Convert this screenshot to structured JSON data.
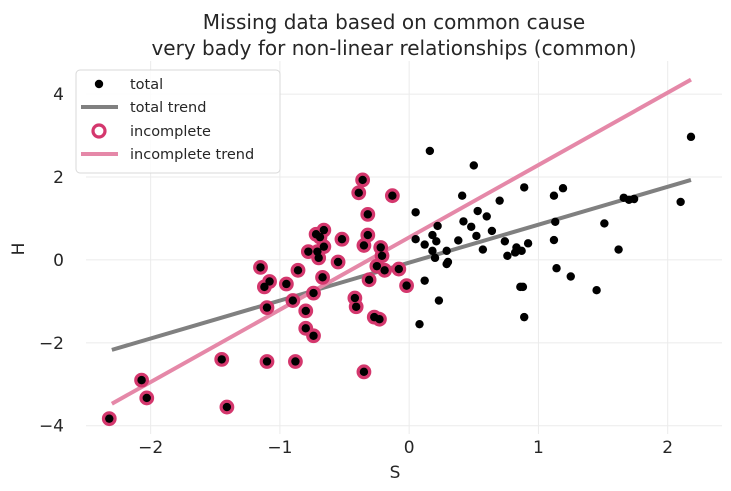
{
  "chart_data": {
    "type": "scatter",
    "title": [
      "Missing data based on common cause",
      "very bady for non-linear relationships (common)"
    ],
    "xlabel": "S",
    "ylabel": "H",
    "xlim": [
      -2.5,
      2.42
    ],
    "ylim": [
      -4.2,
      4.8
    ],
    "xticks": [
      -2,
      -1,
      0,
      1,
      2
    ],
    "yticks": [
      -4,
      -2,
      0,
      2,
      4
    ],
    "xtick_labels": [
      "−2",
      "−1",
      "0",
      "1",
      "2"
    ],
    "ytick_labels": [
      "−4",
      "−2",
      "0",
      "2",
      "4"
    ],
    "grid": true,
    "legend_position": "top-left",
    "legend": [
      "total",
      "total trend",
      "incomplete",
      "incomplete trend"
    ],
    "colors": {
      "total": "#000000",
      "total_trend": "#808080",
      "incomplete": "#d4376d",
      "incomplete_trend": "#e588a8",
      "grid": "#ebebeb"
    },
    "total_trend": {
      "x": [
        -2.3,
        2.18
      ],
      "y": [
        -2.17,
        1.93
      ]
    },
    "incomplete_trend": {
      "x": [
        -2.3,
        2.18
      ],
      "y": [
        -3.47,
        4.35
      ]
    },
    "incomplete_points": [
      [
        -2.32,
        -3.83
      ],
      [
        -2.07,
        -2.9
      ],
      [
        -2.03,
        -3.33
      ],
      [
        -1.45,
        -2.4
      ],
      [
        -1.41,
        -3.55
      ],
      [
        -1.15,
        -0.18
      ],
      [
        -1.12,
        -0.65
      ],
      [
        -1.1,
        -1.15
      ],
      [
        -1.1,
        -2.45
      ],
      [
        -1.08,
        -0.52
      ],
      [
        -0.95,
        -0.58
      ],
      [
        -0.9,
        -0.98
      ],
      [
        -0.88,
        -2.45
      ],
      [
        -0.86,
        -0.25
      ],
      [
        -0.8,
        -1.65
      ],
      [
        -0.8,
        -1.23
      ],
      [
        -0.78,
        0.2
      ],
      [
        -0.74,
        -0.8
      ],
      [
        -0.74,
        -1.83
      ],
      [
        -0.72,
        0.62
      ],
      [
        -0.71,
        0.2
      ],
      [
        -0.7,
        0.05
      ],
      [
        -0.69,
        0.55
      ],
      [
        -0.67,
        -0.42
      ],
      [
        -0.66,
        0.32
      ],
      [
        -0.66,
        0.72
      ],
      [
        -0.55,
        -0.05
      ],
      [
        -0.52,
        0.5
      ],
      [
        -0.42,
        -0.92
      ],
      [
        -0.41,
        -1.13
      ],
      [
        -0.39,
        1.62
      ],
      [
        -0.36,
        1.93
      ],
      [
        -0.35,
        0.35
      ],
      [
        -0.35,
        -2.7
      ],
      [
        -0.32,
        1.1
      ],
      [
        -0.32,
        0.6
      ],
      [
        -0.31,
        -0.48
      ],
      [
        -0.27,
        -1.38
      ],
      [
        -0.25,
        -0.15
      ],
      [
        -0.23,
        -1.43
      ],
      [
        -0.22,
        0.3
      ],
      [
        -0.21,
        0.1
      ],
      [
        -0.19,
        -0.25
      ],
      [
        -0.13,
        1.55
      ],
      [
        -0.08,
        -0.22
      ],
      [
        -0.02,
        -0.62
      ]
    ],
    "complete_points": [
      [
        0.05,
        1.15
      ],
      [
        0.05,
        0.5
      ],
      [
        0.08,
        -1.55
      ],
      [
        0.12,
        0.37
      ],
      [
        0.12,
        -0.5
      ],
      [
        0.16,
        2.63
      ],
      [
        0.18,
        0.6
      ],
      [
        0.18,
        0.22
      ],
      [
        0.2,
        0.05
      ],
      [
        0.21,
        0.45
      ],
      [
        0.23,
        -0.98
      ],
      [
        0.22,
        0.82
      ],
      [
        0.29,
        0.22
      ],
      [
        0.29,
        -0.1
      ],
      [
        0.3,
        -0.05
      ],
      [
        0.38,
        0.47
      ],
      [
        0.41,
        1.55
      ],
      [
        0.42,
        0.93
      ],
      [
        0.48,
        0.8
      ],
      [
        0.5,
        2.28
      ],
      [
        0.52,
        0.58
      ],
      [
        0.53,
        1.18
      ],
      [
        0.57,
        0.25
      ],
      [
        0.6,
        1.05
      ],
      [
        0.64,
        0.7
      ],
      [
        0.7,
        1.43
      ],
      [
        0.74,
        0.45
      ],
      [
        0.76,
        0.1
      ],
      [
        0.82,
        0.18
      ],
      [
        0.83,
        0.3
      ],
      [
        0.86,
        -0.65
      ],
      [
        0.87,
        0.22
      ],
      [
        0.88,
        -0.65
      ],
      [
        0.89,
        1.75
      ],
      [
        0.89,
        -1.38
      ],
      [
        0.92,
        0.4
      ],
      [
        1.12,
        1.55
      ],
      [
        1.12,
        0.48
      ],
      [
        1.13,
        0.92
      ],
      [
        1.14,
        -0.2
      ],
      [
        1.19,
        1.73
      ],
      [
        1.25,
        -0.4
      ],
      [
        1.45,
        -0.73
      ],
      [
        1.51,
        0.88
      ],
      [
        1.62,
        0.25
      ],
      [
        1.66,
        1.5
      ],
      [
        1.7,
        1.45
      ],
      [
        1.74,
        1.47
      ],
      [
        2.1,
        1.4
      ],
      [
        2.18,
        2.97
      ]
    ]
  }
}
